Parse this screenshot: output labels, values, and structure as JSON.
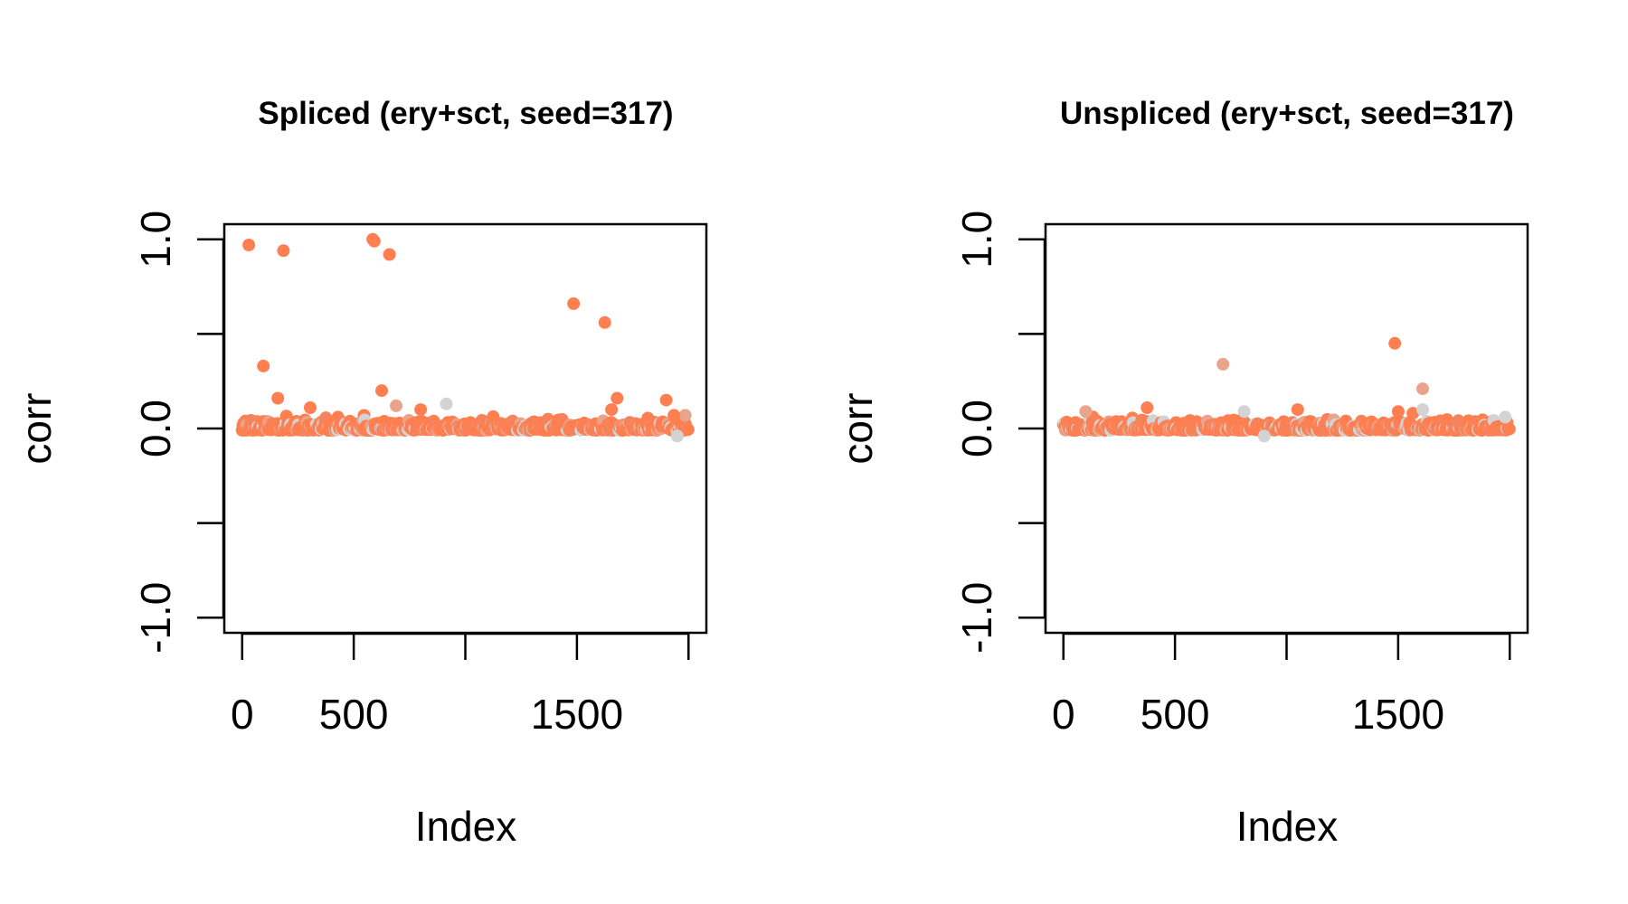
{
  "chart_data": [
    {
      "type": "scatter",
      "title": "Spliced (ery+sct, seed=317)",
      "xlabel": "Index",
      "ylabel": "corr",
      "xlim": [
        0,
        2000
      ],
      "ylim": [
        -1.0,
        1.0
      ],
      "xticks": [
        0,
        500,
        1000,
        1500,
        2000
      ],
      "xtick_labels": [
        "0",
        "500",
        "",
        "1500",
        ""
      ],
      "yticks": [
        -1.0,
        -0.5,
        0.0,
        0.5,
        1.0
      ],
      "ytick_labels": [
        "-1.0",
        "",
        "0.0",
        "",
        "1.0"
      ],
      "grid": false,
      "baseline_colors": [
        "#ff7f50",
        "#f4845f",
        "#d3d3d3",
        "#e8a58c"
      ],
      "highlight_points": [
        {
          "x": 30,
          "y": 0.97,
          "color": "#ff7f50"
        },
        {
          "x": 185,
          "y": 0.94,
          "color": "#ff7f50"
        },
        {
          "x": 585,
          "y": 1.0,
          "color": "#ff7f50"
        },
        {
          "x": 592,
          "y": 0.99,
          "color": "#ff7f50"
        },
        {
          "x": 660,
          "y": 0.92,
          "color": "#ff7f50"
        },
        {
          "x": 1485,
          "y": 0.66,
          "color": "#ff7f50"
        },
        {
          "x": 1625,
          "y": 0.56,
          "color": "#ff7f50"
        },
        {
          "x": 95,
          "y": 0.33,
          "color": "#ff7f50"
        },
        {
          "x": 625,
          "y": 0.2,
          "color": "#ff7f50"
        },
        {
          "x": 160,
          "y": 0.16,
          "color": "#ff7f50"
        },
        {
          "x": 1680,
          "y": 0.16,
          "color": "#ff7f50"
        },
        {
          "x": 1900,
          "y": 0.15,
          "color": "#ff7f50"
        },
        {
          "x": 690,
          "y": 0.12,
          "color": "#e8a58c"
        },
        {
          "x": 915,
          "y": 0.13,
          "color": "#d3d3d3"
        },
        {
          "x": 305,
          "y": 0.11,
          "color": "#ff7f50"
        },
        {
          "x": 1655,
          "y": 0.1,
          "color": "#ff7f50"
        },
        {
          "x": 800,
          "y": 0.1,
          "color": "#ff7f50"
        },
        {
          "x": 1985,
          "y": 0.07,
          "color": "#e8a58c"
        },
        {
          "x": 1935,
          "y": 0.07,
          "color": "#ff7f50"
        },
        {
          "x": 1950,
          "y": -0.04,
          "color": "#d3d3d3"
        }
      ]
    },
    {
      "type": "scatter",
      "title": "Unspliced (ery+sct, seed=317)",
      "xlabel": "Index",
      "ylabel": "corr",
      "xlim": [
        0,
        2000
      ],
      "ylim": [
        -1.0,
        1.0
      ],
      "xticks": [
        0,
        500,
        1000,
        1500,
        2000
      ],
      "xtick_labels": [
        "0",
        "500",
        "",
        "1500",
        ""
      ],
      "yticks": [
        -1.0,
        -0.5,
        0.0,
        0.5,
        1.0
      ],
      "ytick_labels": [
        "-1.0",
        "",
        "0.0",
        "",
        "1.0"
      ],
      "grid": false,
      "baseline_colors": [
        "#ff7f50",
        "#f4845f",
        "#d3d3d3",
        "#e8a58c"
      ],
      "highlight_points": [
        {
          "x": 1485,
          "y": 0.45,
          "color": "#ff7f50"
        },
        {
          "x": 715,
          "y": 0.34,
          "color": "#e8a58c"
        },
        {
          "x": 1610,
          "y": 0.21,
          "color": "#e8a58c"
        },
        {
          "x": 1610,
          "y": 0.1,
          "color": "#d3d3d3"
        },
        {
          "x": 375,
          "y": 0.11,
          "color": "#ff7f50"
        },
        {
          "x": 100,
          "y": 0.09,
          "color": "#e8a58c"
        },
        {
          "x": 810,
          "y": 0.09,
          "color": "#d3d3d3"
        },
        {
          "x": 1500,
          "y": 0.09,
          "color": "#ff7f50"
        },
        {
          "x": 1050,
          "y": 0.1,
          "color": "#ff7f50"
        },
        {
          "x": 900,
          "y": -0.04,
          "color": "#d3d3d3"
        },
        {
          "x": 1980,
          "y": 0.06,
          "color": "#d3d3d3"
        }
      ]
    }
  ]
}
